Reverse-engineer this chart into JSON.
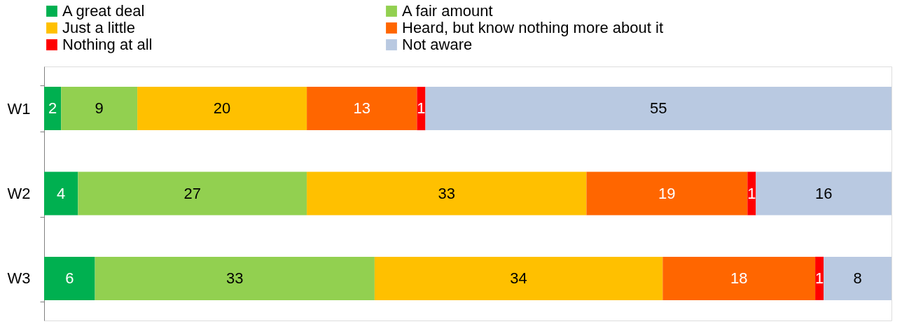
{
  "chart_data": {
    "type": "bar",
    "orientation": "horizontal",
    "stacked": true,
    "categories": [
      "W1",
      "W2",
      "W3"
    ],
    "series": [
      {
        "name": "A great deal",
        "color": "#00b050",
        "values": [
          2,
          4,
          6
        ]
      },
      {
        "name": "A fair amount",
        "color": "#92d050",
        "values": [
          9,
          27,
          33
        ]
      },
      {
        "name": "Just a little",
        "color": "#ffc000",
        "values": [
          20,
          33,
          34
        ]
      },
      {
        "name": "Heard, but know nothing more about it",
        "color": "#ff6600",
        "values": [
          13,
          19,
          18
        ]
      },
      {
        "name": "Nothing at all",
        "color": "#ff0000",
        "values": [
          1,
          1,
          1
        ]
      },
      {
        "name": "Not aware",
        "color": "#b9c9e1",
        "values": [
          55,
          16,
          8
        ]
      }
    ],
    "xlim": [
      0,
      100
    ],
    "data_labels": true,
    "legend": "top",
    "grid": false,
    "tick_labels": "y"
  }
}
